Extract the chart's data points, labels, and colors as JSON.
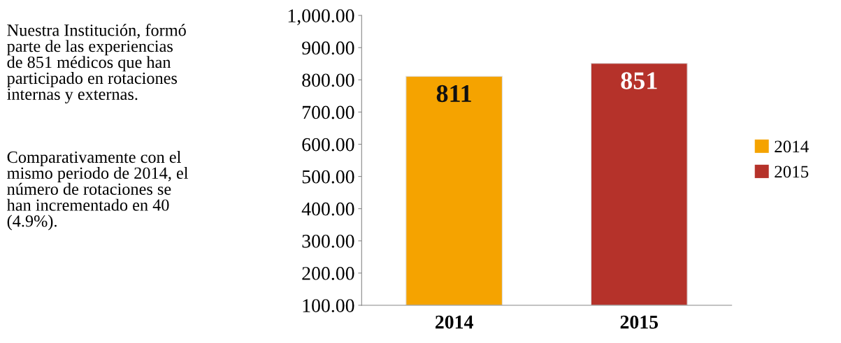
{
  "chart_data": {
    "type": "bar",
    "categories": [
      "2014",
      "2015"
    ],
    "series": [
      {
        "name": "2014",
        "color": "#f5a300",
        "values": [
          811,
          null
        ]
      },
      {
        "name": "2015",
        "color": "#b5322a",
        "values": [
          null,
          851
        ]
      }
    ],
    "ylim": [
      100,
      1000
    ],
    "yticks": [
      {
        "value": 100,
        "label": "100.00"
      },
      {
        "value": 200,
        "label": "200.00"
      },
      {
        "value": 300,
        "label": "300.00"
      },
      {
        "value": 400,
        "label": "400.00"
      },
      {
        "value": 500,
        "label": "500.00"
      },
      {
        "value": 600,
        "label": "600.00"
      },
      {
        "value": 700,
        "label": "700.00"
      },
      {
        "value": 800,
        "label": "800.00"
      },
      {
        "value": 900,
        "label": "900.00"
      },
      {
        "value": 1000,
        "label": "1,000.00"
      }
    ],
    "data_labels": true,
    "legend": "right",
    "grid": false,
    "annotations": [
      "Nuestra Institución, formó\nparte de las experiencias\nde 851 médicos que han\nparticipado en rotaciones\ninternas y externas.",
      "Comparativamente con el\nmismo periodo de 2014, el\nnúmero de rotaciones se\nhan incrementado en 40\n(4.9%)."
    ]
  }
}
